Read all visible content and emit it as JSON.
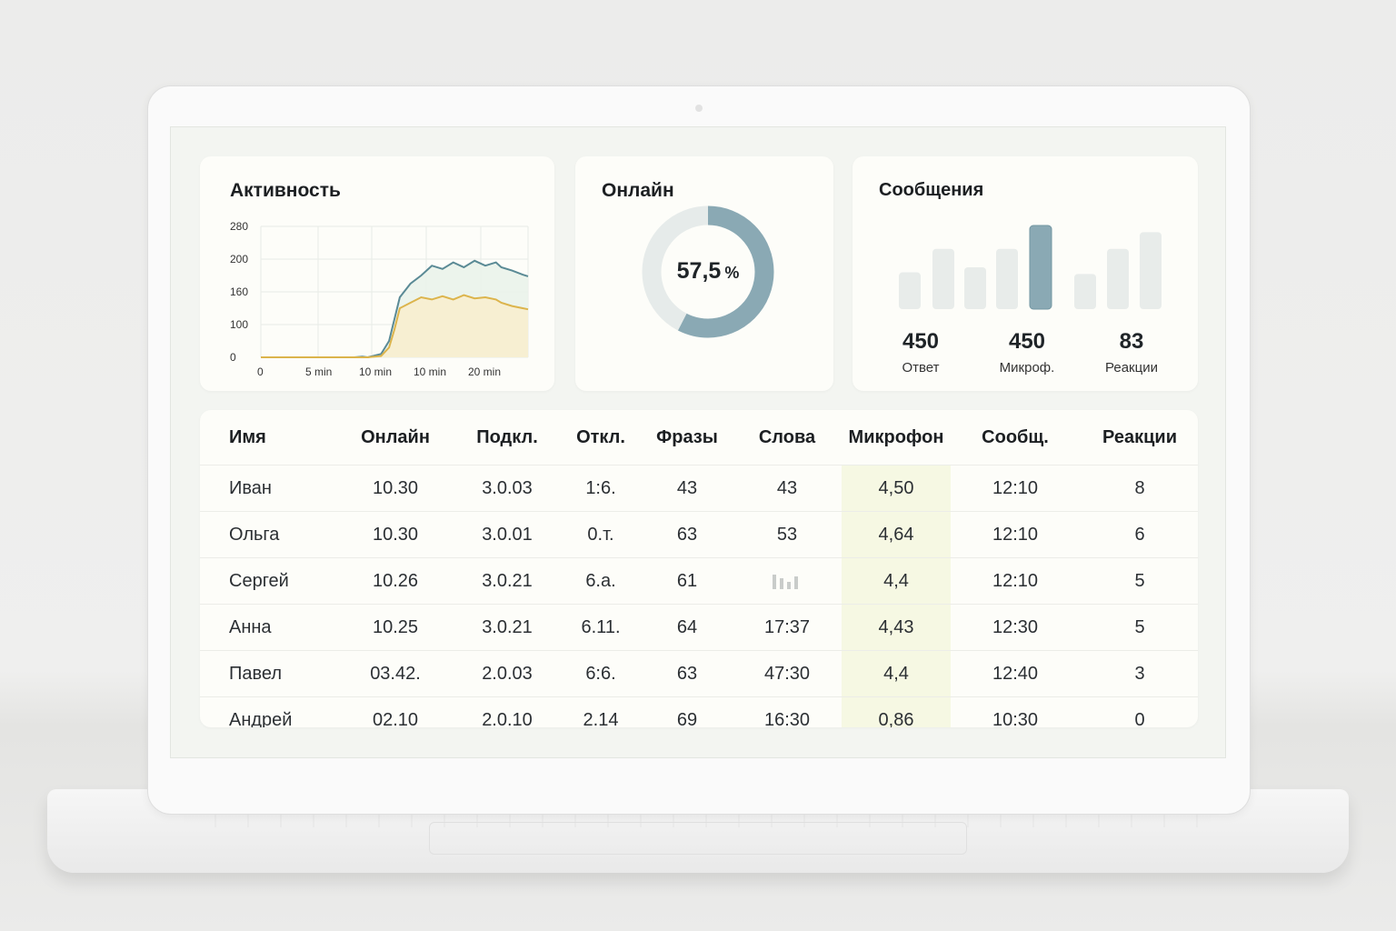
{
  "activity": {
    "title": "Активность",
    "y_ticks": [
      "280",
      "200",
      "160",
      "100",
      "0"
    ],
    "x_ticks": [
      "0",
      "5 min",
      "10 min",
      "10 min",
      "20 min"
    ]
  },
  "online": {
    "title": "Онлайн",
    "percent_label": "57,5",
    "percent_sign": "%",
    "fraction": 0.575,
    "colors": {
      "filled": "#8aa9b4",
      "track": "#e6ebea"
    }
  },
  "messages": {
    "title": "Сообщения",
    "bars": [
      0.44,
      0.72,
      0.5,
      0.72,
      1.0,
      0.42,
      0.72,
      0.92
    ],
    "highlight_index": 4,
    "stats": [
      {
        "value": "450",
        "label": "Ответ"
      },
      {
        "value": "450",
        "label": "Микроф."
      },
      {
        "value": "83",
        "label": "Реакции"
      }
    ]
  },
  "chart_data": {
    "type": "area",
    "title": "Активность",
    "xlabel": "",
    "ylabel": "",
    "x_ticks": [
      "0",
      "5 min",
      "10 min",
      "10 min",
      "20 min"
    ],
    "y_ticks": [
      "0",
      "100",
      "160",
      "200",
      "280"
    ],
    "grid": true,
    "series": [
      {
        "color": "#5a8a95",
        "fill": "#eaf3ea",
        "points": [
          [
            0,
            0
          ],
          [
            10,
            0
          ],
          [
            20,
            0
          ],
          [
            30,
            0
          ],
          [
            35,
            0
          ],
          [
            38,
            2
          ],
          [
            40,
            0
          ],
          [
            45,
            10
          ],
          [
            48,
            50
          ],
          [
            50,
            110
          ],
          [
            52,
            150
          ],
          [
            56,
            170
          ],
          [
            60,
            180
          ],
          [
            64,
            192
          ],
          [
            68,
            188
          ],
          [
            72,
            196
          ],
          [
            76,
            190
          ],
          [
            80,
            198
          ],
          [
            84,
            192
          ],
          [
            88,
            196
          ],
          [
            90,
            190
          ],
          [
            94,
            186
          ],
          [
            98,
            181
          ],
          [
            100,
            179
          ]
        ]
      },
      {
        "color": "#dcb44c",
        "fill": "#f8eecf",
        "points": [
          [
            0,
            0
          ],
          [
            10,
            0
          ],
          [
            20,
            0
          ],
          [
            30,
            0
          ],
          [
            40,
            0
          ],
          [
            45,
            4
          ],
          [
            48,
            30
          ],
          [
            50,
            85
          ],
          [
            52,
            130
          ],
          [
            56,
            140
          ],
          [
            60,
            150
          ],
          [
            64,
            146
          ],
          [
            68,
            152
          ],
          [
            72,
            146
          ],
          [
            76,
            154
          ],
          [
            80,
            148
          ],
          [
            84,
            150
          ],
          [
            88,
            146
          ],
          [
            90,
            140
          ],
          [
            94,
            134
          ],
          [
            98,
            130
          ],
          [
            100,
            128
          ]
        ]
      }
    ]
  },
  "table": {
    "headers": [
      "Имя",
      "Онлайн",
      "Подкл.",
      "Откл.",
      "Фразы",
      "Слова",
      "Микрофон",
      "Сообщ.",
      "Реакции"
    ],
    "rows": [
      [
        "Иван",
        "10.30",
        "3.0.03",
        "1:6.",
        "43",
        "43",
        "4,50",
        "12:10",
        "8"
      ],
      [
        "Ольга",
        "10.30",
        "3.0.01",
        "0.т.",
        "63",
        "53",
        "4,64",
        "12:10",
        "6"
      ],
      [
        "Сергей",
        "10.26",
        "3.0.21",
        "6.а.",
        "61",
        "",
        "4,4",
        "12:10",
        "5"
      ],
      [
        "Анна",
        "10.25",
        "3.0.21",
        "6.11.",
        "64",
        "17:37",
        "4,43",
        "12:30",
        "5"
      ],
      [
        "Павел",
        "03.42.",
        "2.0.03",
        "6:6.",
        "63",
        "47:30",
        "4,4",
        "12:40",
        "3"
      ],
      [
        "Андрей",
        "02.10",
        "2.0.10",
        "2.14",
        "69",
        "16:30",
        "0,86",
        "10:30",
        "0"
      ]
    ]
  }
}
